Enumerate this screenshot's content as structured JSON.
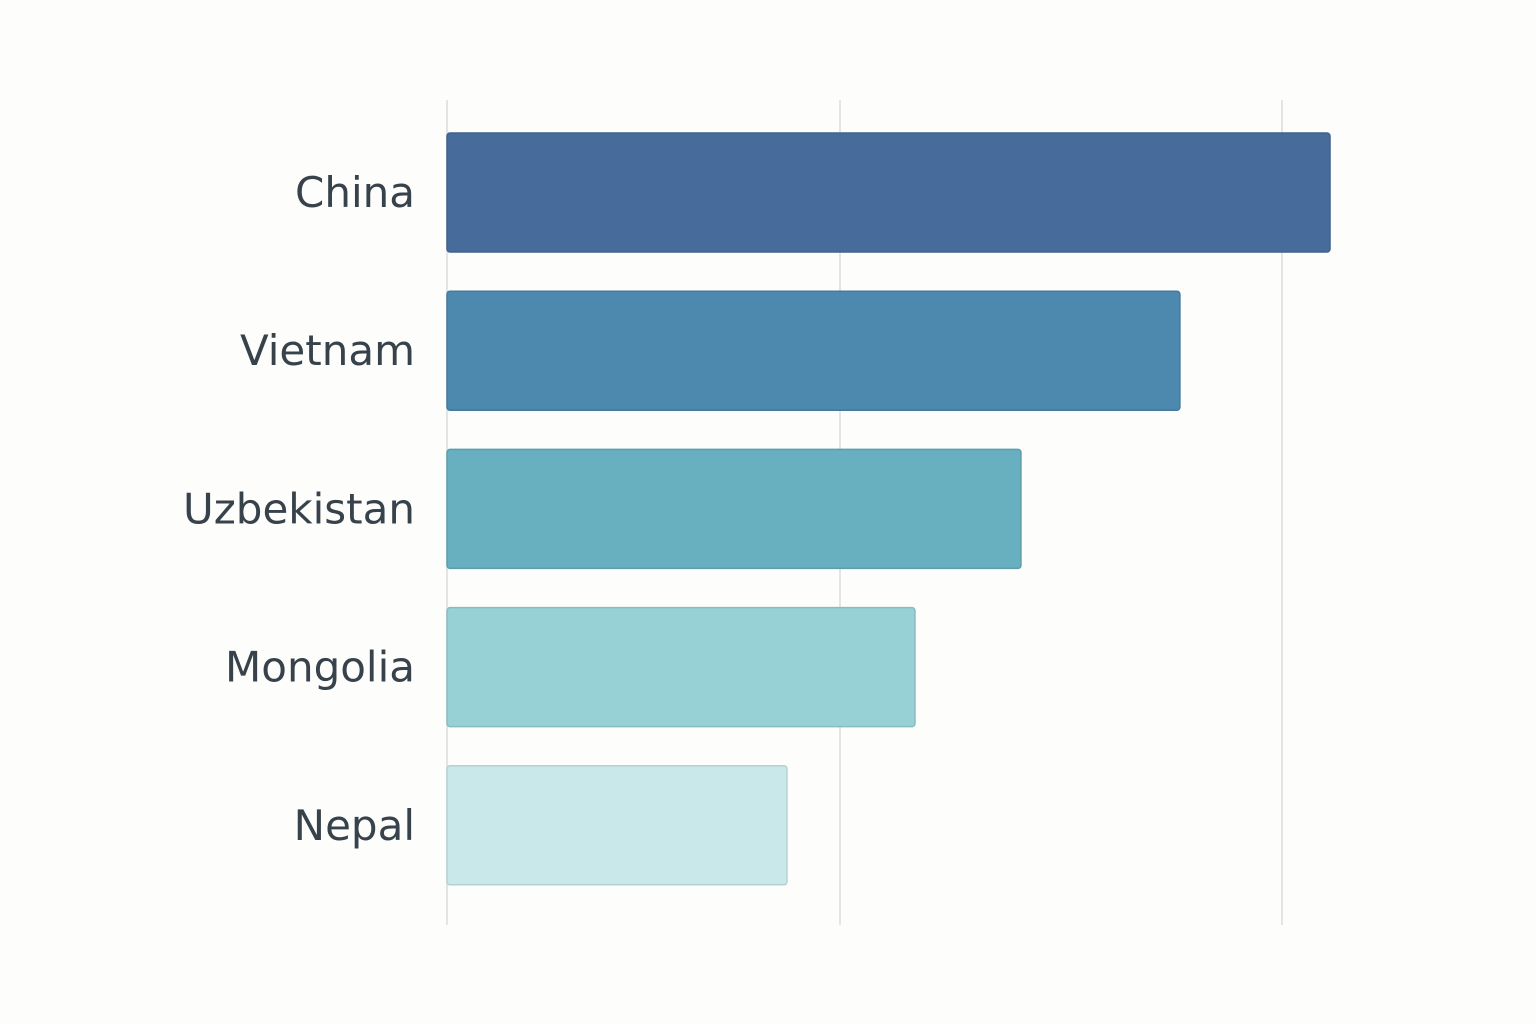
{
  "chart_data": {
    "type": "bar",
    "orientation": "horizontal",
    "categories": [
      "China",
      "Vietnam",
      "Uzbekistan",
      "Mongolia",
      "Nepal"
    ],
    "values": [
      100,
      83,
      65,
      53,
      38.5
    ],
    "colors": [
      "#476c9c",
      "#4d88ae",
      "#68afbf",
      "#97d1d5",
      "#c9e8e9"
    ],
    "xlim": [
      0,
      100
    ],
    "grid": true,
    "title": "",
    "xlabel": "",
    "ylabel": ""
  }
}
